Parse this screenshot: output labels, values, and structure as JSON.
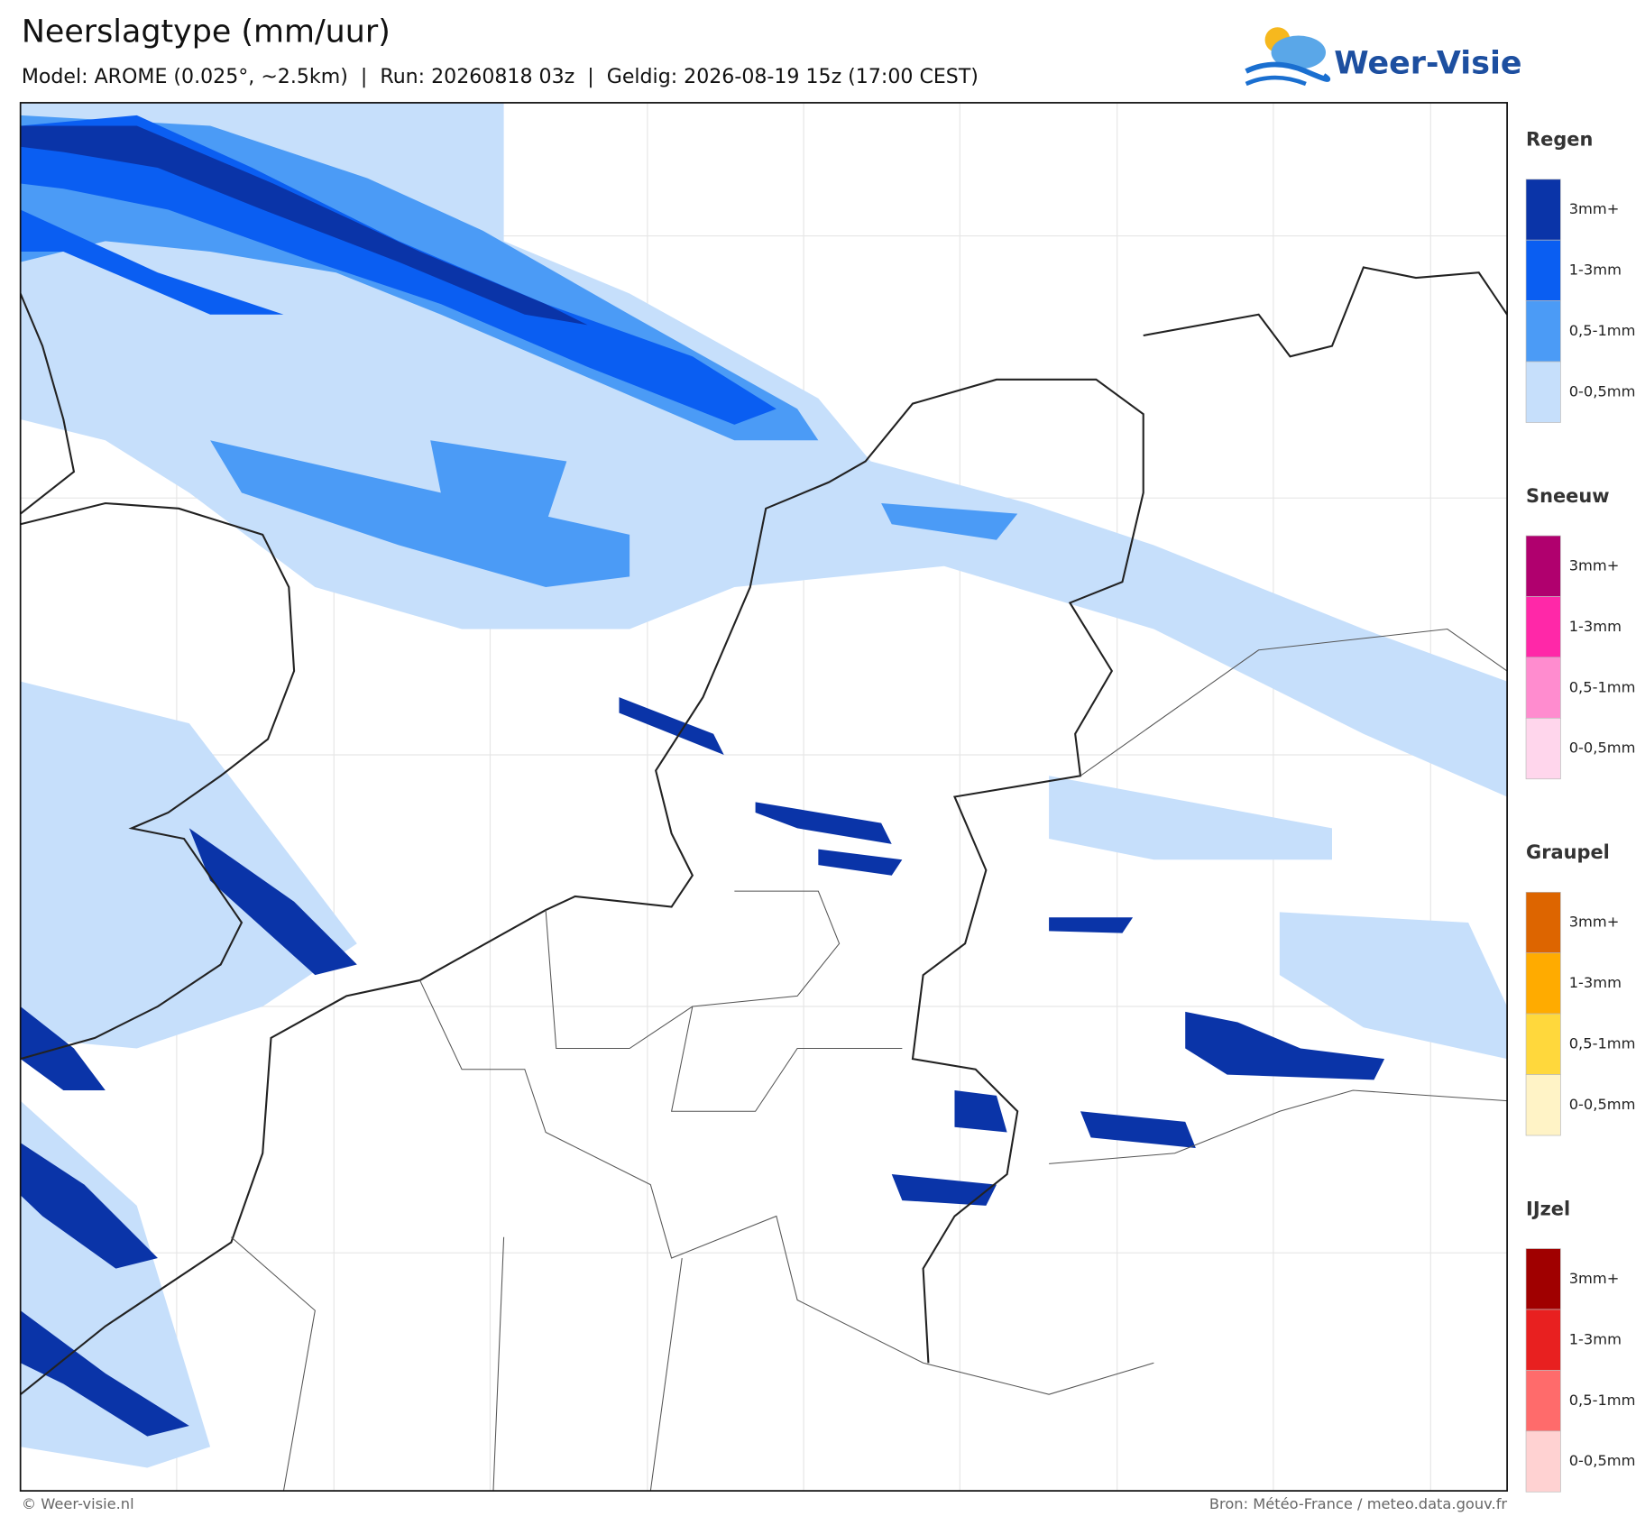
{
  "header": {
    "title": "Neerslagtype (mm/uur)",
    "subtitle": "Model: AROME (0.025°, ~2.5km)  |  Run: 20260818 03z  |  Geldig: 2026-08-19 15z (17:00 CEST)",
    "logo": "Weer-Visie"
  },
  "legend": [
    {
      "title": "Regen",
      "items": [
        {
          "label": "3mm+",
          "color": "#0a34a8"
        },
        {
          "label": "1-3mm",
          "color": "#0a5ef2"
        },
        {
          "label": "0,5-1mm",
          "color": "#4b9bf6"
        },
        {
          "label": "0-0,5mm",
          "color": "#c6dffb"
        }
      ]
    },
    {
      "title": "Sneeuw",
      "items": [
        {
          "label": "3mm+",
          "color": "#b0006e"
        },
        {
          "label": "1-3mm",
          "color": "#ff28a8"
        },
        {
          "label": "0,5-1mm",
          "color": "#ff8ccf"
        },
        {
          "label": "0-0,5mm",
          "color": "#ffd6ec"
        }
      ]
    },
    {
      "title": "Graupel",
      "items": [
        {
          "label": "3mm+",
          "color": "#dd6500"
        },
        {
          "label": "1-3mm",
          "color": "#ffab00"
        },
        {
          "label": "0,5-1mm",
          "color": "#ffd83c"
        },
        {
          "label": "0-0,5mm",
          "color": "#fff3c6"
        }
      ]
    },
    {
      "title": "IJzel",
      "items": [
        {
          "label": "3mm+",
          "color": "#a00000"
        },
        {
          "label": "1-3mm",
          "color": "#e82020"
        },
        {
          "label": "0,5-1mm",
          "color": "#ff6b6b"
        },
        {
          "label": "0-0,5mm",
          "color": "#ffd2d2"
        }
      ]
    }
  ],
  "footer": {
    "left": "© Weer-visie.nl",
    "right": "Bron: Météo-France / meteo.data.gouv.fr"
  }
}
